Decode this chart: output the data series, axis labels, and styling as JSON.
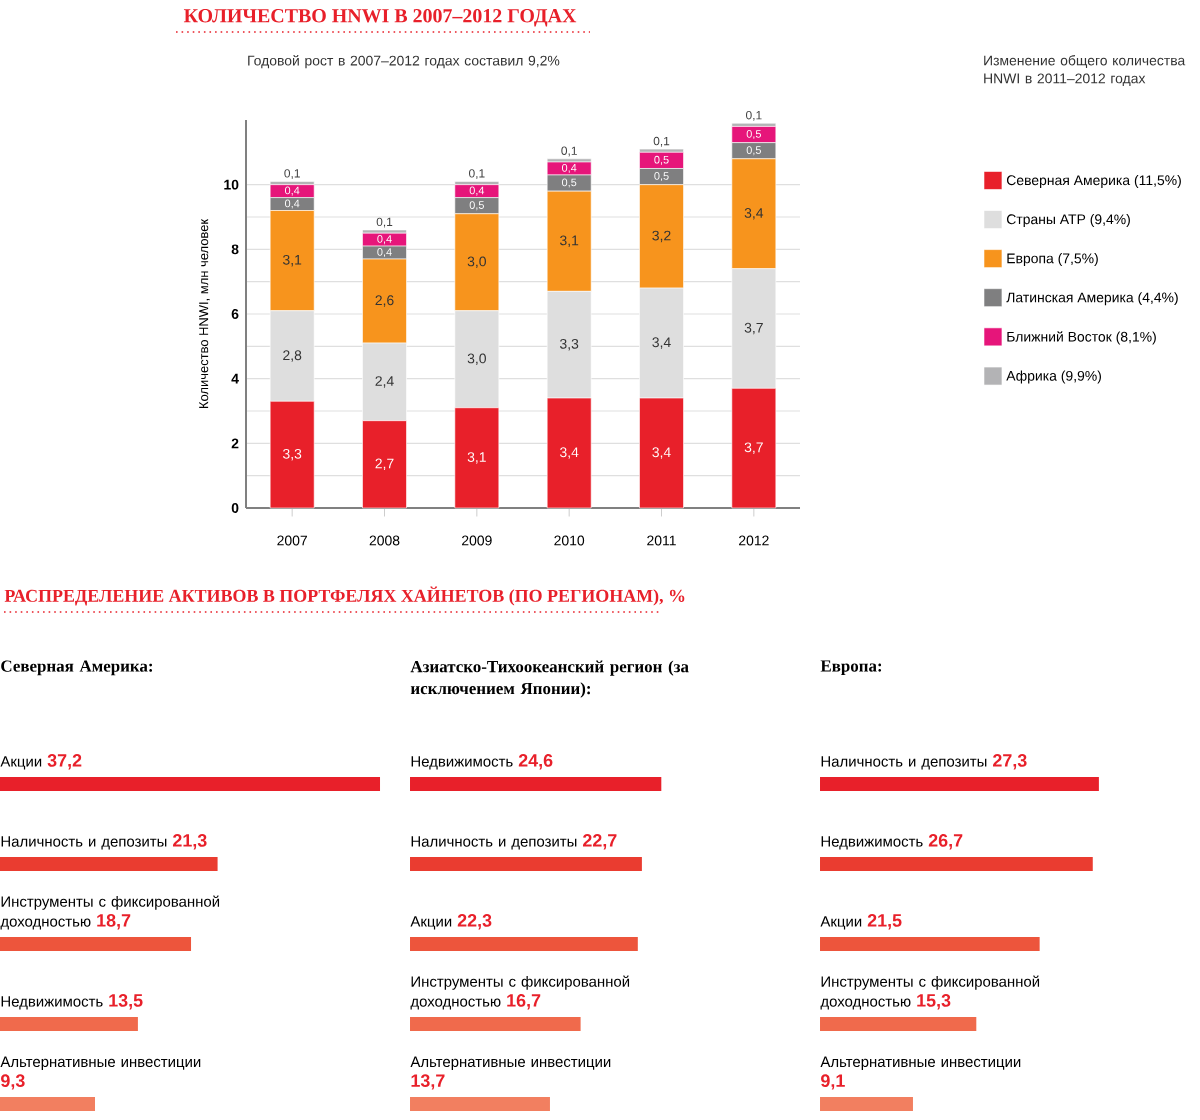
{
  "chart_data": [
    {
      "type": "bar",
      "stacked": true,
      "title": "КОЛИЧЕСТВО HNWI В 2007–2012 ГОДАХ",
      "ylabel": "Количество HNWI, млн человек",
      "legend_title": "Изменение общего количества HNWI в 2011–2012 годах",
      "annotations": [
        "Годовой рост в 2007–2012 годах составил 9,2%"
      ],
      "categories": [
        "2007",
        "2008",
        "2009",
        "2010",
        "2011",
        "2012"
      ],
      "ylim": [
        0,
        12
      ],
      "yticks": [
        0,
        2,
        4,
        6,
        8,
        10
      ],
      "grid": "y",
      "legend": "right",
      "series": [
        {
          "name": "Северная Америка (11,5%)",
          "color": "#e8202a",
          "values": [
            3.3,
            2.7,
            3.1,
            3.4,
            3.4,
            3.7
          ],
          "value_labels": [
            "3,3",
            "2,7",
            "3,1",
            "3,4",
            "3,4",
            "3,7"
          ]
        },
        {
          "name": "Страны АТР (9,4%)",
          "color": "#dedede",
          "values": [
            2.8,
            2.4,
            3.0,
            3.3,
            3.4,
            3.7
          ],
          "value_labels": [
            "2,8",
            "2,4",
            "3,0",
            "3,3",
            "3,4",
            "3,7"
          ]
        },
        {
          "name": "Европа (7,5%)",
          "color": "#f7941d",
          "values": [
            3.1,
            2.6,
            3.0,
            3.1,
            3.2,
            3.4
          ],
          "value_labels": [
            "3,1",
            "2,6",
            "3,0",
            "3,1",
            "3,2",
            "3,4"
          ]
        },
        {
          "name": "Латинская Америка (4,4%)",
          "color": "#7f7f80",
          "values": [
            0.4,
            0.4,
            0.5,
            0.5,
            0.5,
            0.5
          ],
          "value_labels": [
            "0,4",
            "0,4",
            "0,5",
            "0,5",
            "0,5",
            "0,5"
          ]
        },
        {
          "name": "Ближний Восток (8,1%)",
          "color": "#e6157a",
          "values": [
            0.4,
            0.4,
            0.4,
            0.4,
            0.5,
            0.5
          ],
          "value_labels": [
            "0,4",
            "0,4",
            "0,4",
            "0,4",
            "0,5",
            "0,5"
          ]
        },
        {
          "name": "Африка (9,9%)",
          "color": "#b3b3b5",
          "values": [
            0.1,
            0.1,
            0.1,
            0.1,
            0.1,
            0.1
          ],
          "value_labels": [
            "0,1",
            "0,1",
            "0,1",
            "0,1",
            "0,1",
            "0,1"
          ]
        }
      ]
    },
    {
      "type": "bar",
      "orientation": "horizontal",
      "title": "РАСПРЕДЕЛЕНИЕ АКТИВОВ В ПОРТФЕЛЯХ ХАЙНЕТОВ (ПО РЕГИОНАМ), %",
      "subtitle": "Северная Америка:",
      "categories": [
        "Акции",
        "Наличность и депозиты",
        "Инструменты с фиксированной доходностью",
        "Недвижимость",
        "Альтернативные инвестиции"
      ],
      "values": [
        37.2,
        21.3,
        18.7,
        13.5,
        9.3
      ],
      "value_labels": [
        "37,2",
        "21,3",
        "18,7",
        "13,5",
        "9,3"
      ],
      "colors": [
        "#e8202a",
        "#ea3c30",
        "#ed553c",
        "#f06a4c",
        "#f27f60"
      ],
      "tick_labels": false
    },
    {
      "type": "bar",
      "orientation": "horizontal",
      "title": "Азиатско-Тихоокеанский регион (за исключением Японии):",
      "categories": [
        "Недвижимость",
        "Наличность и депозиты",
        "Акции",
        "Инструменты с фиксированной доходностью",
        "Альтернативные инвестиции"
      ],
      "values": [
        24.6,
        22.7,
        22.3,
        16.7,
        13.7
      ],
      "value_labels": [
        "24,6",
        "22,7",
        "22,3",
        "16,7",
        "13,7"
      ],
      "colors": [
        "#e8202a",
        "#ea3c30",
        "#ed553c",
        "#f06a4c",
        "#f27f60"
      ],
      "tick_labels": false
    },
    {
      "type": "bar",
      "orientation": "horizontal",
      "title": "Европа:",
      "categories": [
        "Наличность и депозиты",
        "Недвижимость",
        "Акции",
        "Инструменты с фиксированной доходностью",
        "Альтернативные инвестиции"
      ],
      "values": [
        27.3,
        26.7,
        21.5,
        15.3,
        9.1
      ],
      "value_labels": [
        "27,3",
        "26,7",
        "21,5",
        "15,3",
        "9,1"
      ],
      "colors": [
        "#e8202a",
        "#ea3c30",
        "#ed553c",
        "#f06a4c",
        "#f27f60"
      ],
      "tick_labels": false
    }
  ]
}
